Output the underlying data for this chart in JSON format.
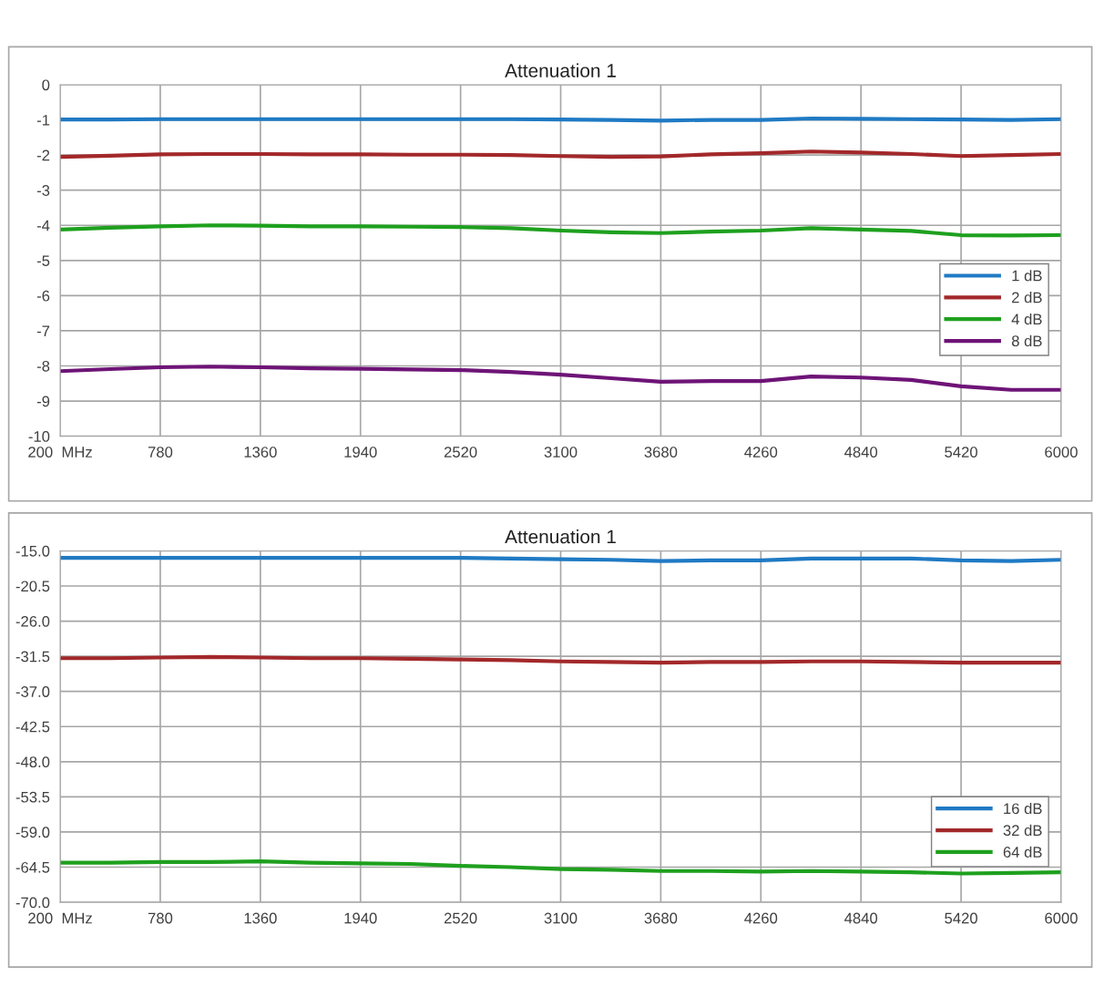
{
  "chart_data": [
    {
      "type": "line",
      "title": "Attenuation 1",
      "x": [
        200,
        490,
        780,
        1070,
        1360,
        1650,
        1940,
        2230,
        2520,
        2810,
        3100,
        3390,
        3680,
        3970,
        4260,
        4550,
        4840,
        5130,
        5420,
        5710,
        6000
      ],
      "xlim": [
        200,
        6000
      ],
      "xticks": [
        {
          "value": 200,
          "label": "200  MHz"
        },
        780,
        1360,
        1940,
        2520,
        3100,
        3680,
        4260,
        4840,
        5420,
        6000
      ],
      "ylim": [
        -10,
        0
      ],
      "yticks": [
        -10,
        -9,
        -8,
        -7,
        -6,
        -5,
        -4,
        -3,
        -2,
        -1,
        0
      ],
      "grid": true,
      "legend": "right",
      "marker": "none",
      "line_style": "solid",
      "series": [
        {
          "name": "1 dB",
          "color": "#1f7ac4",
          "values": [
            -0.99,
            -0.99,
            -0.98,
            -0.98,
            -0.98,
            -0.98,
            -0.98,
            -0.98,
            -0.98,
            -0.98,
            -0.99,
            -1.0,
            -1.02,
            -1.0,
            -1.0,
            -0.96,
            -0.97,
            -0.98,
            -0.99,
            -1.0,
            -0.98
          ]
        },
        {
          "name": "2 dB",
          "color": "#a3282a",
          "values": [
            -2.05,
            -2.02,
            -1.98,
            -1.97,
            -1.97,
            -1.98,
            -1.98,
            -1.99,
            -1.99,
            -2.0,
            -2.03,
            -2.05,
            -2.04,
            -1.98,
            -1.95,
            -1.9,
            -1.93,
            -1.97,
            -2.03,
            -2.0,
            -1.97
          ]
        },
        {
          "name": "4 dB",
          "color": "#1ea01e",
          "values": [
            -4.12,
            -4.07,
            -4.03,
            -4.0,
            -4.01,
            -4.03,
            -4.03,
            -4.04,
            -4.05,
            -4.08,
            -4.15,
            -4.2,
            -4.22,
            -4.18,
            -4.15,
            -4.08,
            -4.12,
            -4.16,
            -4.28,
            -4.29,
            -4.28
          ]
        },
        {
          "name": "8 dB",
          "color": "#6e1477",
          "values": [
            -8.15,
            -8.09,
            -8.04,
            -8.02,
            -8.04,
            -8.07,
            -8.08,
            -8.1,
            -8.12,
            -8.17,
            -8.25,
            -8.35,
            -8.45,
            -8.43,
            -8.43,
            -8.3,
            -8.33,
            -8.4,
            -8.58,
            -8.68,
            -8.68
          ]
        }
      ]
    },
    {
      "type": "line",
      "title": "Attenuation 1",
      "x": [
        200,
        490,
        780,
        1070,
        1360,
        1650,
        1940,
        2230,
        2520,
        2810,
        3100,
        3390,
        3680,
        3970,
        4260,
        4550,
        4840,
        5130,
        5420,
        5710,
        6000
      ],
      "xlim": [
        200,
        6000
      ],
      "xticks": [
        {
          "value": 200,
          "label": "200  MHz"
        },
        780,
        1360,
        1940,
        2520,
        3100,
        3680,
        4260,
        4840,
        5420,
        6000
      ],
      "ylim": [
        -70,
        -15
      ],
      "yticks": [
        {
          "value": -70,
          "label": "-70.0"
        },
        {
          "value": -64.5,
          "label": "-64.5"
        },
        {
          "value": -59,
          "label": "-59.0"
        },
        {
          "value": -53.5,
          "label": "-53.5"
        },
        {
          "value": -48,
          "label": "-48.0"
        },
        {
          "value": -42.5,
          "label": "-42.5"
        },
        {
          "value": -37,
          "label": "-37.0"
        },
        {
          "value": -31.5,
          "label": "-31.5"
        },
        {
          "value": -26,
          "label": "-26.0"
        },
        {
          "value": -20.5,
          "label": "-20.5"
        },
        {
          "value": -15,
          "label": "-15.0"
        }
      ],
      "grid": true,
      "legend": "lower right",
      "marker": "none",
      "line_style": "solid",
      "series": [
        {
          "name": "16 dB",
          "color": "#1f7ac4",
          "values": [
            -16.1,
            -16.1,
            -16.1,
            -16.1,
            -16.1,
            -16.1,
            -16.1,
            -16.1,
            -16.1,
            -16.2,
            -16.3,
            -16.4,
            -16.6,
            -16.5,
            -16.5,
            -16.2,
            -16.2,
            -16.2,
            -16.5,
            -16.6,
            -16.4
          ]
        },
        {
          "name": "32 dB",
          "color": "#a3282a",
          "values": [
            -31.8,
            -31.8,
            -31.7,
            -31.6,
            -31.7,
            -31.8,
            -31.8,
            -31.9,
            -32.0,
            -32.1,
            -32.3,
            -32.4,
            -32.5,
            -32.4,
            -32.4,
            -32.3,
            -32.3,
            -32.4,
            -32.5,
            -32.5,
            -32.5
          ]
        },
        {
          "name": "64 dB",
          "color": "#1ea01e",
          "values": [
            -63.8,
            -63.8,
            -63.7,
            -63.7,
            -63.6,
            -63.8,
            -63.9,
            -64.0,
            -64.3,
            -64.5,
            -64.8,
            -64.9,
            -65.1,
            -65.1,
            -65.2,
            -65.1,
            -65.2,
            -65.3,
            -65.5,
            -65.4,
            -65.3
          ]
        }
      ]
    }
  ]
}
